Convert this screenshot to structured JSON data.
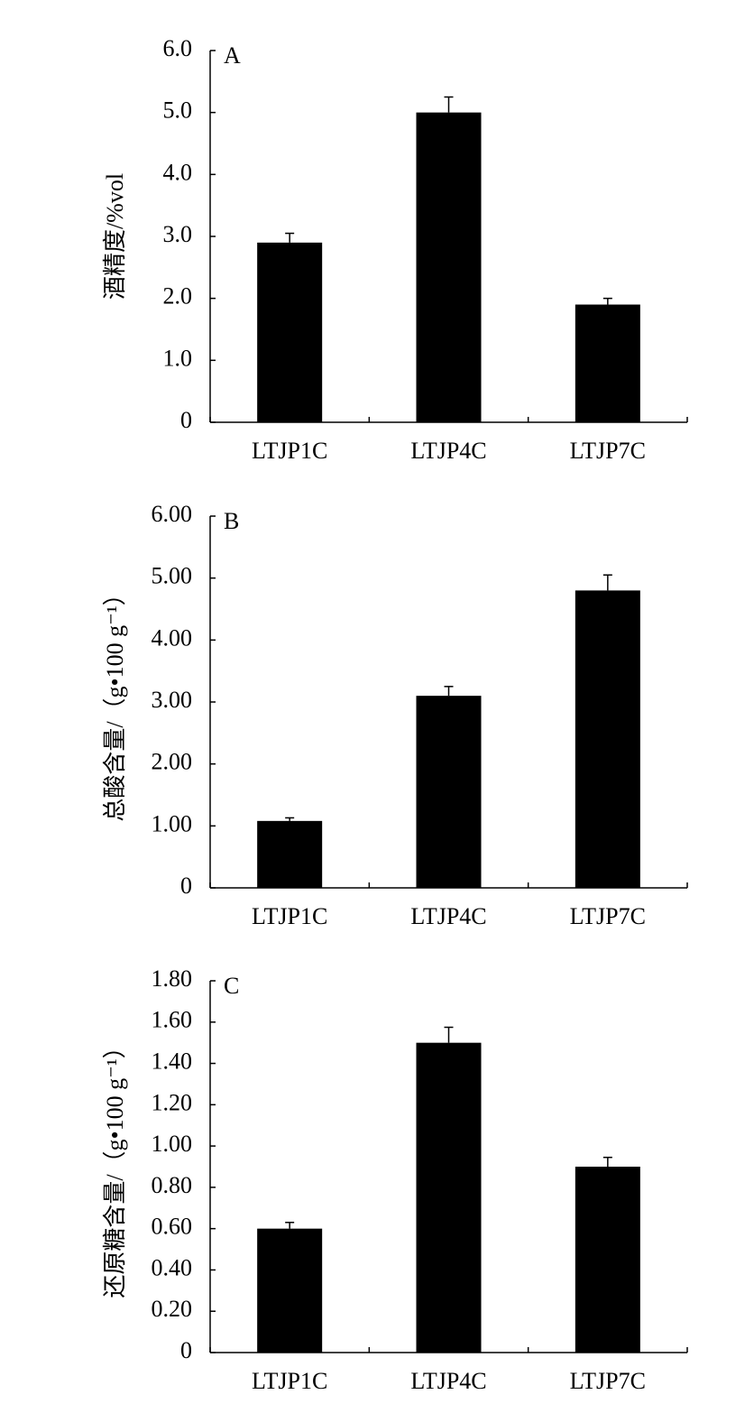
{
  "chart_data": [
    {
      "type": "bar",
      "title": "A",
      "ylabel": "酒精度/%vol",
      "categories": [
        "LTJP1C",
        "LTJP4C",
        "LTJP7C"
      ],
      "values": [
        2.9,
        5.0,
        1.9
      ],
      "errors": [
        0.15,
        0.25,
        0.1
      ],
      "color": "#000000",
      "ylim": [
        0,
        6
      ],
      "yticks": [
        0,
        {
          "value": 1,
          "label": "1.0"
        },
        {
          "value": 2,
          "label": "2.0"
        },
        {
          "value": 3,
          "label": "3.0"
        },
        {
          "value": 4,
          "label": "4.0"
        },
        {
          "value": 5,
          "label": "5.0"
        },
        {
          "value": 6,
          "label": "6.0"
        }
      ]
    },
    {
      "type": "bar",
      "title": "B",
      "ylabel": "总酸含量/（g•100 g⁻¹）",
      "categories": [
        "LTJP1C",
        "LTJP4C",
        "LTJP7C"
      ],
      "values": [
        1.08,
        3.1,
        4.8
      ],
      "errors": [
        0.05,
        0.15,
        0.25
      ],
      "color": "#000000",
      "ylim": [
        0,
        6
      ],
      "yticks": [
        0,
        {
          "value": 1,
          "label": "1.00"
        },
        {
          "value": 2,
          "label": "2.00"
        },
        {
          "value": 3,
          "label": "3.00"
        },
        {
          "value": 4,
          "label": "4.00"
        },
        {
          "value": 5,
          "label": "5.00"
        },
        {
          "value": 6,
          "label": "6.00"
        }
      ]
    },
    {
      "type": "bar",
      "title": "C",
      "ylabel": "还原糖含量/（g•100 g⁻¹）",
      "categories": [
        "LTJP1C",
        "LTJP4C",
        "LTJP7C"
      ],
      "values": [
        0.6,
        1.5,
        0.9
      ],
      "errors": [
        0.03,
        0.075,
        0.045
      ],
      "color": "#000000",
      "ylim": [
        0,
        1.8
      ],
      "yticks": [
        0,
        {
          "value": 0.2,
          "label": "0.20"
        },
        {
          "value": 0.4,
          "label": "0.40"
        },
        {
          "value": 0.6,
          "label": "0.60"
        },
        {
          "value": 0.8,
          "label": "0.80"
        },
        {
          "value": 1,
          "label": "1.00"
        },
        {
          "value": 1.2,
          "label": "1.20"
        },
        {
          "value": 1.4,
          "label": "1.40"
        },
        {
          "value": 1.6,
          "label": "1.60"
        },
        {
          "value": 1.8,
          "label": "1.80"
        }
      ]
    }
  ]
}
